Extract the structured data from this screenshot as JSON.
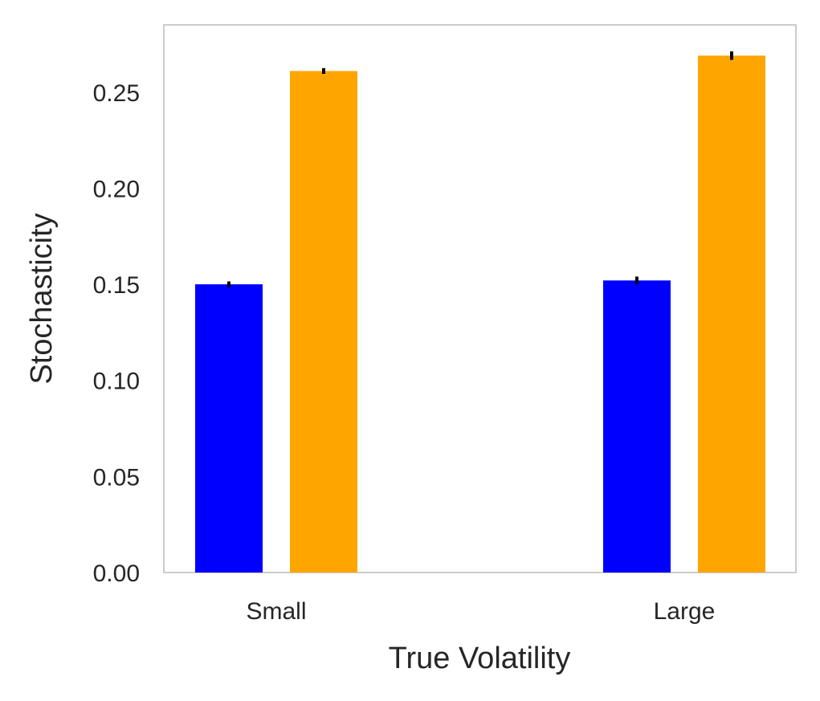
{
  "chart_data": {
    "type": "bar",
    "title": "",
    "xlabel": "True Volatility",
    "ylabel": "Stochasticity",
    "categories": [
      "Small",
      "Large"
    ],
    "series": [
      {
        "color": "#0000ff",
        "values": [
          0.15,
          0.152
        ],
        "errors": [
          0.0015,
          0.002
        ]
      },
      {
        "color": "#ffa500",
        "values": [
          0.261,
          0.269
        ],
        "errors": [
          0.0015,
          0.0022
        ]
      }
    ],
    "ylim": [
      0,
      0.285
    ],
    "yticks": [
      "0.00",
      "0.05",
      "0.10",
      "0.15",
      "0.20",
      "0.25"
    ],
    "grid": false,
    "legend": "none"
  }
}
